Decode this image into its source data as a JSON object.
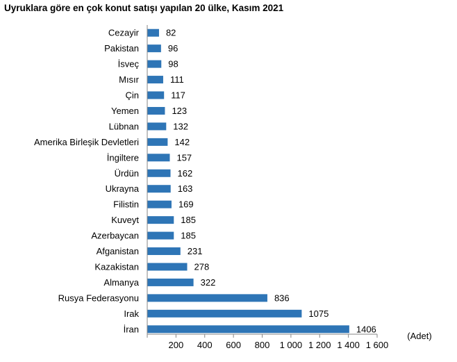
{
  "chart_data": {
    "type": "bar",
    "orientation": "horizontal",
    "title": "Uyruklara göre en çok konut satışı yapılan 20 ülke, Kasım 2021",
    "unit_label": "(Adet)",
    "categories": [
      "Cezayir",
      "Pakistan",
      "İsveç",
      "Mısır",
      "Çin",
      "Yemen",
      "Lübnan",
      "Amerika Birleşik Devletleri",
      "İngiltere",
      "Ürdün",
      "Ukrayna",
      "Filistin",
      "Kuveyt",
      "Azerbaycan",
      "Afganistan",
      "Kazakistan",
      "Almanya",
      "Rusya Federasyonu",
      "Irak",
      "İran"
    ],
    "values": [
      82,
      96,
      98,
      111,
      117,
      123,
      132,
      142,
      157,
      162,
      163,
      169,
      185,
      185,
      231,
      278,
      322,
      836,
      1075,
      1406
    ],
    "xlim": [
      0,
      1600
    ],
    "xticks": [
      0,
      200,
      400,
      600,
      800,
      1000,
      1200,
      1400,
      1600
    ],
    "xtick_labels": [
      "",
      "200",
      "400",
      "600",
      "800",
      "1 000",
      "1 200",
      "1 400",
      "1 600"
    ],
    "bar_color": "#2e75b6",
    "grid": false,
    "legend": "none"
  }
}
